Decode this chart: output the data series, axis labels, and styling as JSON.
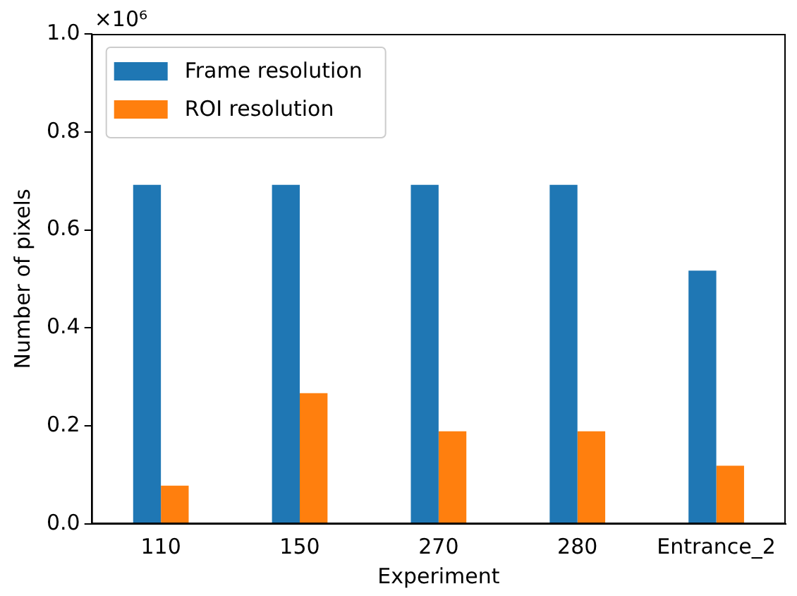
{
  "chart_data": {
    "type": "bar",
    "xlabel": "Experiment",
    "ylabel": "Number of pixels",
    "categories": [
      "110",
      "150",
      "270",
      "280",
      "Entrance_2"
    ],
    "series": [
      {
        "name": "Frame resolution",
        "color": "#1f77b4",
        "values": [
          0.692,
          0.692,
          0.692,
          0.692,
          0.517
        ]
      },
      {
        "name": "ROI resolution",
        "color": "#ff7f0e",
        "values": [
          0.078,
          0.267,
          0.189,
          0.189,
          0.119
        ]
      }
    ],
    "ylim": [
      0,
      1
    ],
    "yticks": [
      {
        "value": 0,
        "label": "0.0"
      },
      {
        "value": 0.2,
        "label": "0.2"
      },
      {
        "value": 0.4,
        "label": "0.4"
      },
      {
        "value": 0.6,
        "label": "0.6"
      },
      {
        "value": 0.8,
        "label": "0.8"
      },
      {
        "value": 1,
        "label": "1.0"
      }
    ],
    "annotations": [
      "×10⁶"
    ],
    "grid": false,
    "legend": "top left"
  }
}
